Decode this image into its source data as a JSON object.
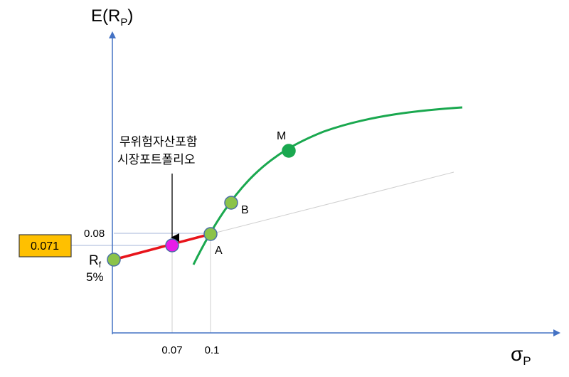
{
  "axes": {
    "y_label_main": "E(R",
    "y_label_sub": "P",
    "y_label_close": ")",
    "x_label_main": "σ",
    "x_label_sub": "P"
  },
  "ticks": {
    "y_008": "0.08",
    "x_007": "0.07",
    "x_01": "0.1"
  },
  "highlight_value": "0.071",
  "points": {
    "rf_main": "R",
    "rf_sub": "f",
    "rf_pct": "5%",
    "a": "A",
    "b": "B",
    "m": "M"
  },
  "annotation": {
    "line1": "무위험자산포함",
    "line2": "시장포트폴리오"
  },
  "colors": {
    "axis": "#4472C4",
    "frontier": "#1AA84F",
    "cal_segment": "#E8141B",
    "guide": "#A6B6D9",
    "point_fill": "#8BC34A",
    "point_stroke": "#4A6FA5",
    "portfolio_fill": "#E81BE8",
    "m_fill": "#1AA84F",
    "box_fill": "#FFC000",
    "box_stroke": "#3B3B3B"
  }
}
